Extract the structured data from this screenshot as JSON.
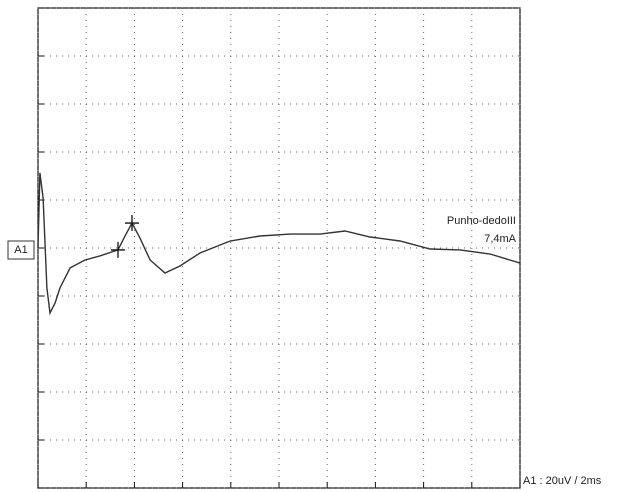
{
  "chart_data": {
    "type": "line",
    "trace_label": "A1",
    "annotation": "Punho-dedoIII",
    "stimulus": "7,4mA",
    "scale_label": "A1 : 20uV / 2ms",
    "x": [
      0,
      0.08,
      0.21,
      0.37,
      0.5,
      0.71,
      0.91,
      1.33,
      1.95,
      2.57,
      3.32,
      3.57,
      3.9,
      4.23,
      4.65,
      5.27,
      5.89,
      6.72,
      7.97,
      9.21,
      10.46,
      11.7,
      12.74,
      13.78,
      15.02,
      16.27,
      17.51,
      18.76,
      20
    ],
    "series": [
      {
        "name": "A1",
        "color": "#333333",
        "values": [
          0,
          31.3,
          20.8,
          -16.7,
          -27.1,
          -22.9,
          -16.7,
          -8.3,
          -5,
          -3.3,
          -0.8,
          4.2,
          10.4,
          4.2,
          -5,
          -10.4,
          -7.5,
          -2.1,
          2.9,
          5,
          5.8,
          5.8,
          7.1,
          4.6,
          2.9,
          -0.4,
          -0.8,
          -2.5,
          -6.3
        ]
      }
    ],
    "cursor_points": [
      10,
      12
    ],
    "xlim": [
      0,
      20
    ],
    "xticks": [
      0,
      2,
      4,
      6,
      8,
      10,
      12,
      14,
      16,
      18,
      20
    ],
    "ylim": [
      -100,
      100
    ],
    "yticks": [
      -100,
      -80,
      -60,
      -40,
      -20,
      0,
      20,
      40,
      60,
      80,
      100
    ],
    "grid": true
  }
}
